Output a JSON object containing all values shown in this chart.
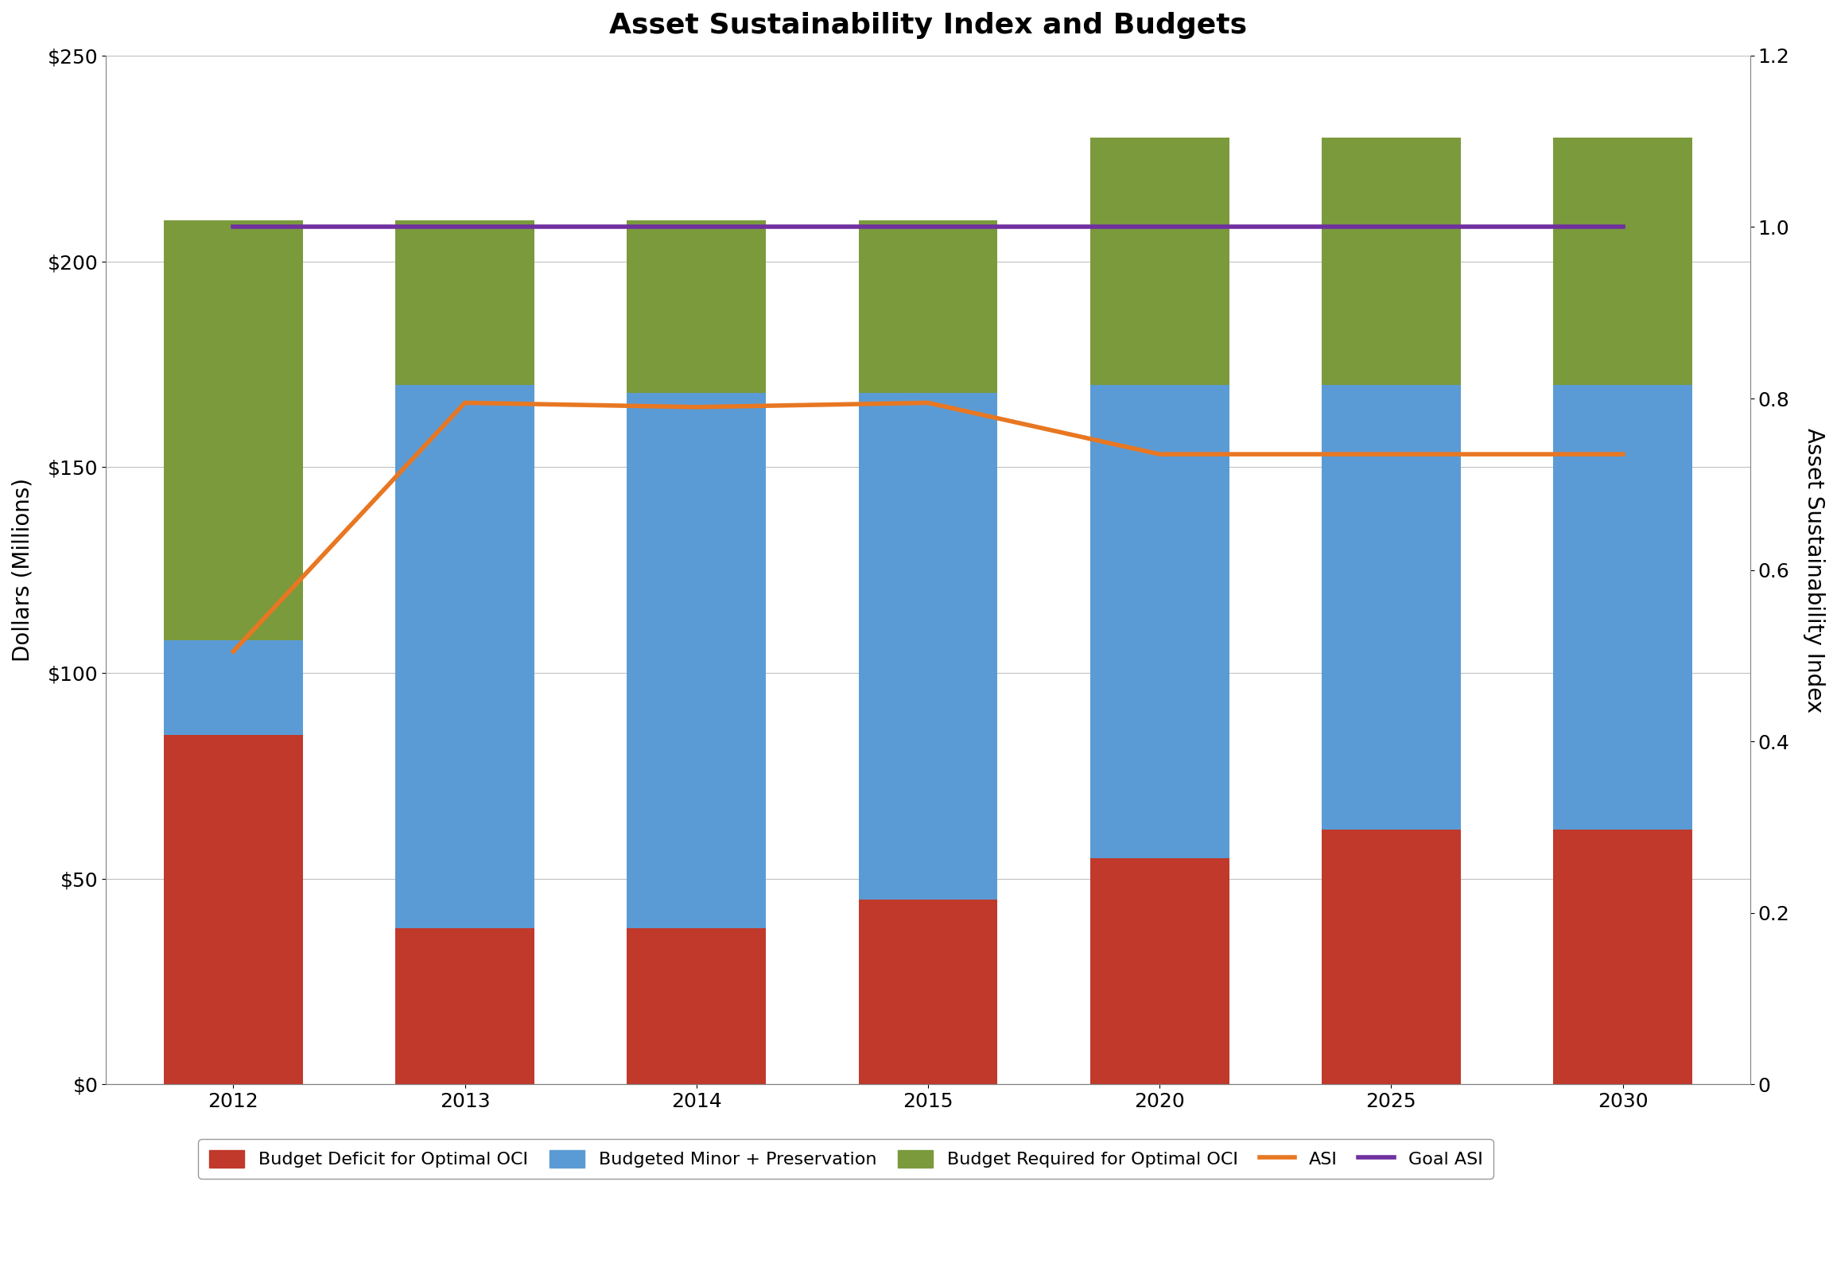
{
  "title": "Asset Sustainability Index and Budgets",
  "years": [
    2012,
    2013,
    2014,
    2015,
    2020,
    2025,
    2030
  ],
  "budget_deficit": [
    85,
    38,
    38,
    45,
    55,
    62,
    62
  ],
  "budgeted_minor_pres": [
    108,
    170,
    168,
    168,
    170,
    170,
    170
  ],
  "budget_required": [
    210,
    210,
    210,
    210,
    230,
    230,
    230
  ],
  "asi": [
    0.505,
    0.795,
    0.79,
    0.795,
    0.735,
    0.735,
    0.735
  ],
  "goal_asi": [
    1.0,
    1.0,
    1.0,
    1.0,
    1.0,
    1.0,
    1.0
  ],
  "bar_width": 0.6,
  "color_deficit": "#C0392B",
  "color_budgeted": "#5B9BD5",
  "color_required": "#7A9A3C",
  "color_asi": "#E87722",
  "color_goal": "#7030A0",
  "ylabel_left": "Dollars (Millions)",
  "ylabel_right": "Asset Sustainability Index",
  "ylim_left": [
    0,
    250
  ],
  "ylim_right": [
    0,
    1.2
  ],
  "yticks_left": [
    0,
    50,
    100,
    150,
    200,
    250
  ],
  "ytick_labels_left": [
    "$0",
    "$50",
    "$100",
    "$150",
    "$200",
    "$250"
  ],
  "yticks_right": [
    0,
    0.2,
    0.4,
    0.6,
    0.8,
    1.0,
    1.2
  ],
  "background_color": "#FFFFFF",
  "plot_bg_color": "#FFFFFF",
  "grid_color": "#C0C0C0",
  "legend_labels": [
    "Budget Deficit for Optimal OCI",
    "Budgeted Minor + Preservation",
    "Budget Required for Optimal OCI",
    "ASI",
    "Goal ASI"
  ],
  "title_fontsize": 26,
  "axis_label_fontsize": 20,
  "tick_fontsize": 18,
  "legend_fontsize": 16
}
